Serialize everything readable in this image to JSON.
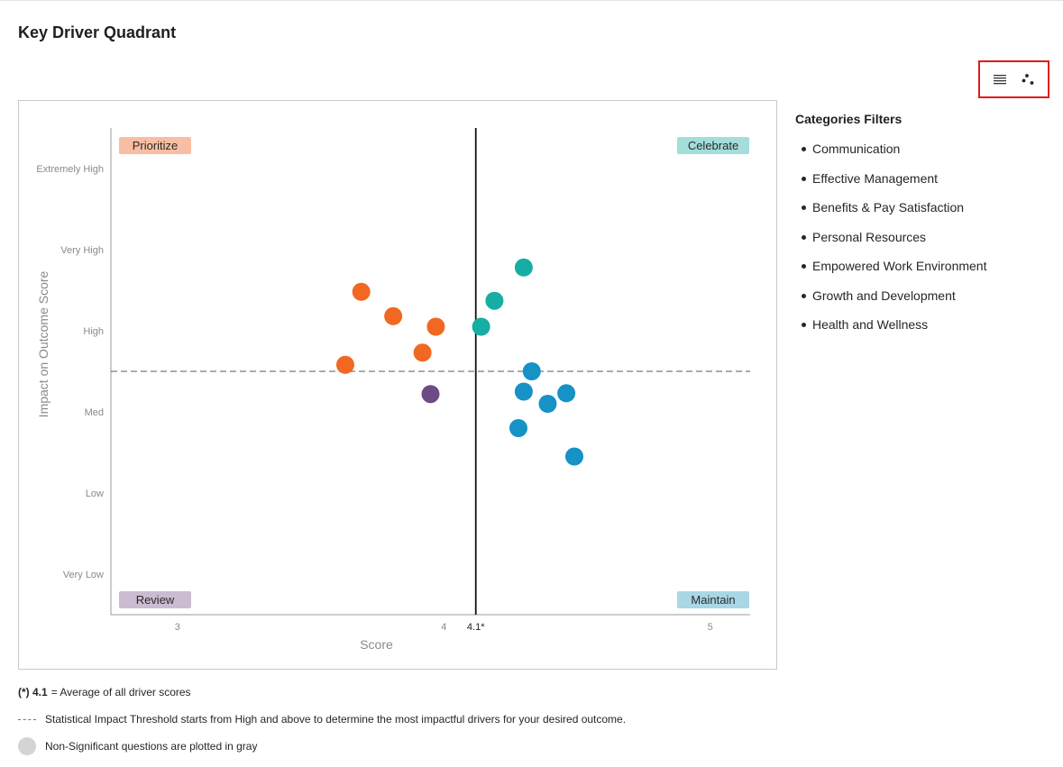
{
  "page": {
    "title": "Key Driver Quadrant"
  },
  "toolbar": {
    "list_view_icon": "list-icon",
    "scatter_view_icon": "scatter-icon"
  },
  "chart_data": {
    "type": "scatter",
    "xlabel": "Score",
    "ylabel": "Impact on Outcome Score",
    "xlim": [
      2.75,
      5.15
    ],
    "ylim": [
      -0.5,
      5.5
    ],
    "x_ticks": [
      {
        "value": 3,
        "label": "3"
      },
      {
        "value": 4,
        "label": "4"
      },
      {
        "value": 5,
        "label": "5"
      }
    ],
    "average": {
      "value": 4.12,
      "label": "4.1*"
    },
    "y_ticks": [
      {
        "value": 0,
        "label": "Very Low"
      },
      {
        "value": 1,
        "label": "Low"
      },
      {
        "value": 2,
        "label": "Med"
      },
      {
        "value": 3,
        "label": "High"
      },
      {
        "value": 4,
        "label": "Very High"
      },
      {
        "value": 5,
        "label": "Extremely High"
      }
    ],
    "threshold": 2.5,
    "quadrants": {
      "top_left": {
        "label": "Prioritize",
        "color": "#f8bea3"
      },
      "top_right": {
        "label": "Celebrate",
        "color": "#a3dedb"
      },
      "bottom_left": {
        "label": "Review",
        "color": "#cbbcd1"
      },
      "bottom_right": {
        "label": "Maintain",
        "color": "#a9d7e6"
      }
    },
    "colors": {
      "prioritize": "#f26722",
      "celebrate": "#16aea2",
      "maintain": "#1692c6",
      "review": "#6b4c85"
    },
    "points": [
      {
        "x": 3.69,
        "y": 3.48,
        "group": "prioritize"
      },
      {
        "x": 3.81,
        "y": 3.18,
        "group": "prioritize"
      },
      {
        "x": 3.97,
        "y": 3.05,
        "group": "prioritize"
      },
      {
        "x": 3.92,
        "y": 2.73,
        "group": "prioritize"
      },
      {
        "x": 3.63,
        "y": 2.58,
        "group": "prioritize"
      },
      {
        "x": 4.3,
        "y": 3.78,
        "group": "celebrate"
      },
      {
        "x": 4.19,
        "y": 3.37,
        "group": "celebrate"
      },
      {
        "x": 4.14,
        "y": 3.05,
        "group": "celebrate"
      },
      {
        "x": 4.33,
        "y": 2.5,
        "group": "maintain"
      },
      {
        "x": 4.3,
        "y": 2.25,
        "group": "maintain"
      },
      {
        "x": 4.39,
        "y": 2.1,
        "group": "maintain"
      },
      {
        "x": 4.46,
        "y": 2.23,
        "group": "maintain"
      },
      {
        "x": 4.28,
        "y": 1.8,
        "group": "maintain"
      },
      {
        "x": 4.49,
        "y": 1.45,
        "group": "maintain"
      },
      {
        "x": 3.95,
        "y": 2.22,
        "group": "review"
      }
    ]
  },
  "filters": {
    "title": "Categories Filters",
    "items": [
      "Communication",
      "Effective Management",
      "Benefits & Pay Satisfaction",
      "Personal Resources",
      "Empowered Work Environment",
      "Growth and Development",
      "Health and Wellness"
    ]
  },
  "legend": {
    "avg_prefix": "(*) 4.1",
    "avg_text": "= Average of all driver scores",
    "threshold_text": "Statistical Impact Threshold starts from High and above to determine the most impactful drivers for your desired outcome.",
    "nonsig_text": "Non-Significant questions are plotted in gray",
    "nonsig_color": "#d4d4d4"
  }
}
